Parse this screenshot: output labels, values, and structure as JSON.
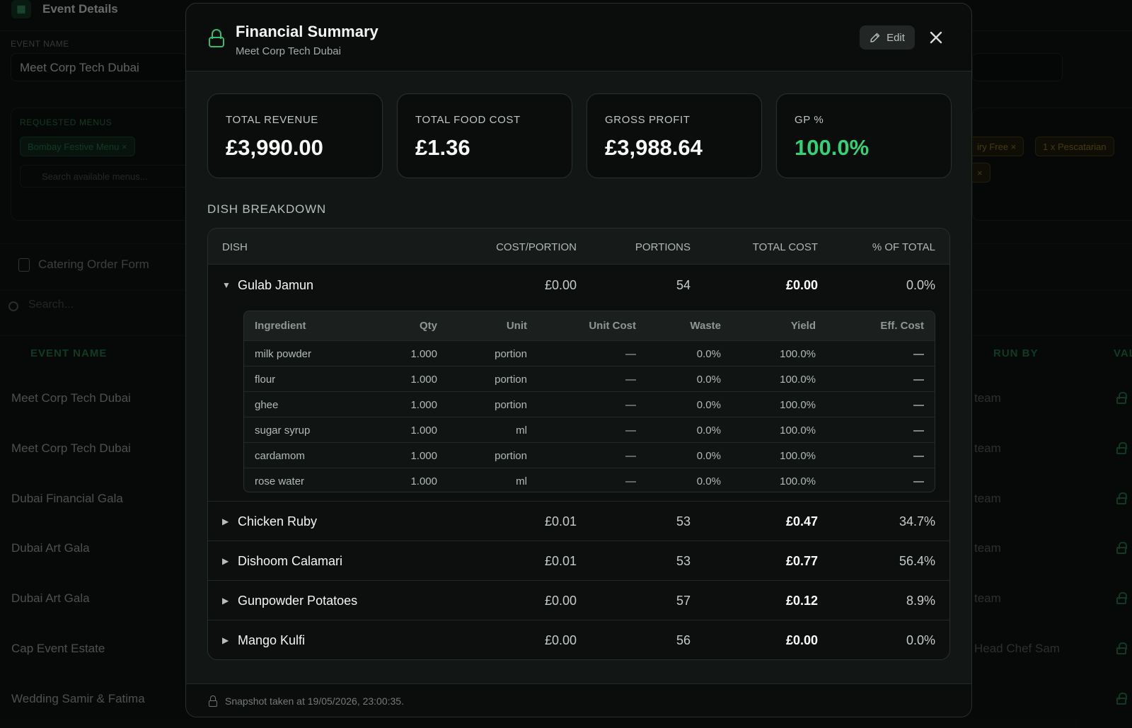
{
  "background": {
    "header_title": "Event Details",
    "event_name_label": "EVENT NAME",
    "event_name_value": "Meet Corp Tech Dubai",
    "requested_menus_label": "REQUESTED MENUS",
    "menu_chip": "Bombay Festive Menu",
    "menu_search_placeholder": "Search available menus...",
    "dietary_chip_1": "iry Free",
    "dietary_chip_2_count": "1",
    "dietary_chip_2_label": "x Pescatarian",
    "catering_order_form": "Catering Order Form",
    "search_placeholder": "Search...",
    "col_event_name": "EVENT NAME",
    "col_run_by": "RUN BY",
    "col_val": "VAL",
    "rows": [
      {
        "event": "Meet Corp Tech Dubai",
        "run_by": "team"
      },
      {
        "event": "Meet Corp Tech Dubai",
        "run_by": "team"
      },
      {
        "event": "Dubai Financial Gala",
        "run_by": "team"
      },
      {
        "event": "Dubai Art Gala",
        "run_by": "team"
      },
      {
        "event": "Dubai Art Gala",
        "run_by": "team"
      },
      {
        "event": "Cap Event Estate",
        "run_by": "Head Chef Sam"
      },
      {
        "event": "Wedding Samir & Fatima",
        "run_by": ""
      }
    ]
  },
  "modal": {
    "title": "Financial Summary",
    "subtitle": "Meet Corp Tech Dubai",
    "edit_label": "Edit",
    "kpis": [
      {
        "label": "TOTAL REVENUE",
        "value": "£3,990.00"
      },
      {
        "label": "TOTAL FOOD COST",
        "value": "£1.36"
      },
      {
        "label": "GROSS PROFIT",
        "value": "£3,988.64"
      },
      {
        "label": "GP %",
        "value": "100.0%"
      }
    ],
    "section_title": "DISH BREAKDOWN",
    "columns": {
      "dish": "DISH",
      "cost_portion": "COST/PORTION",
      "portions": "PORTIONS",
      "total_cost": "TOTAL COST",
      "pct_total": "% OF TOTAL"
    },
    "dishes": [
      {
        "name": "Gulab Jamun",
        "cost_portion": "£0.00",
        "portions": "54",
        "total_cost": "£0.00",
        "pct": "0.0%",
        "expanded": true,
        "toggle": "▼"
      },
      {
        "name": "Chicken Ruby",
        "cost_portion": "£0.01",
        "portions": "53",
        "total_cost": "£0.47",
        "pct": "34.7%",
        "expanded": false,
        "toggle": "▶"
      },
      {
        "name": "Dishoom Calamari",
        "cost_portion": "£0.01",
        "portions": "53",
        "total_cost": "£0.77",
        "pct": "56.4%",
        "expanded": false,
        "toggle": "▶"
      },
      {
        "name": "Gunpowder Potatoes",
        "cost_portion": "£0.00",
        "portions": "57",
        "total_cost": "£0.12",
        "pct": "8.9%",
        "expanded": false,
        "toggle": "▶"
      },
      {
        "name": "Mango Kulfi",
        "cost_portion": "£0.00",
        "portions": "56",
        "total_cost": "£0.00",
        "pct": "0.0%",
        "expanded": false,
        "toggle": "▶"
      }
    ],
    "ingredient_columns": {
      "ingredient": "Ingredient",
      "qty": "Qty",
      "unit": "Unit",
      "unit_cost": "Unit Cost",
      "waste": "Waste",
      "yield": "Yield",
      "eff_cost": "Eff. Cost"
    },
    "ingredients": [
      {
        "name": "milk powder",
        "qty": "1.000",
        "unit": "portion",
        "unit_cost": "—",
        "waste": "0.0%",
        "yield": "100.0%",
        "eff_cost": "—"
      },
      {
        "name": "flour",
        "qty": "1.000",
        "unit": "portion",
        "unit_cost": "—",
        "waste": "0.0%",
        "yield": "100.0%",
        "eff_cost": "—"
      },
      {
        "name": "ghee",
        "qty": "1.000",
        "unit": "portion",
        "unit_cost": "—",
        "waste": "0.0%",
        "yield": "100.0%",
        "eff_cost": "—"
      },
      {
        "name": "sugar syrup",
        "qty": "1.000",
        "unit": "ml",
        "unit_cost": "—",
        "waste": "0.0%",
        "yield": "100.0%",
        "eff_cost": "—"
      },
      {
        "name": "cardamom",
        "qty": "1.000",
        "unit": "portion",
        "unit_cost": "—",
        "waste": "0.0%",
        "yield": "100.0%",
        "eff_cost": "—"
      },
      {
        "name": "rose water",
        "qty": "1.000",
        "unit": "ml",
        "unit_cost": "—",
        "waste": "0.0%",
        "yield": "100.0%",
        "eff_cost": "—"
      }
    ],
    "footer_text": "Snapshot taken at 19/05/2026, 23:00:35."
  },
  "colors": {
    "accent_green": "#34d177",
    "modal_bg": "#121614",
    "card_bg": "#0b0d0c"
  },
  "icons": [
    "calendar-icon",
    "document-icon",
    "search-icon",
    "lock-icon",
    "pencil-icon",
    "close-icon",
    "caret-down-icon",
    "caret-right-icon"
  ]
}
